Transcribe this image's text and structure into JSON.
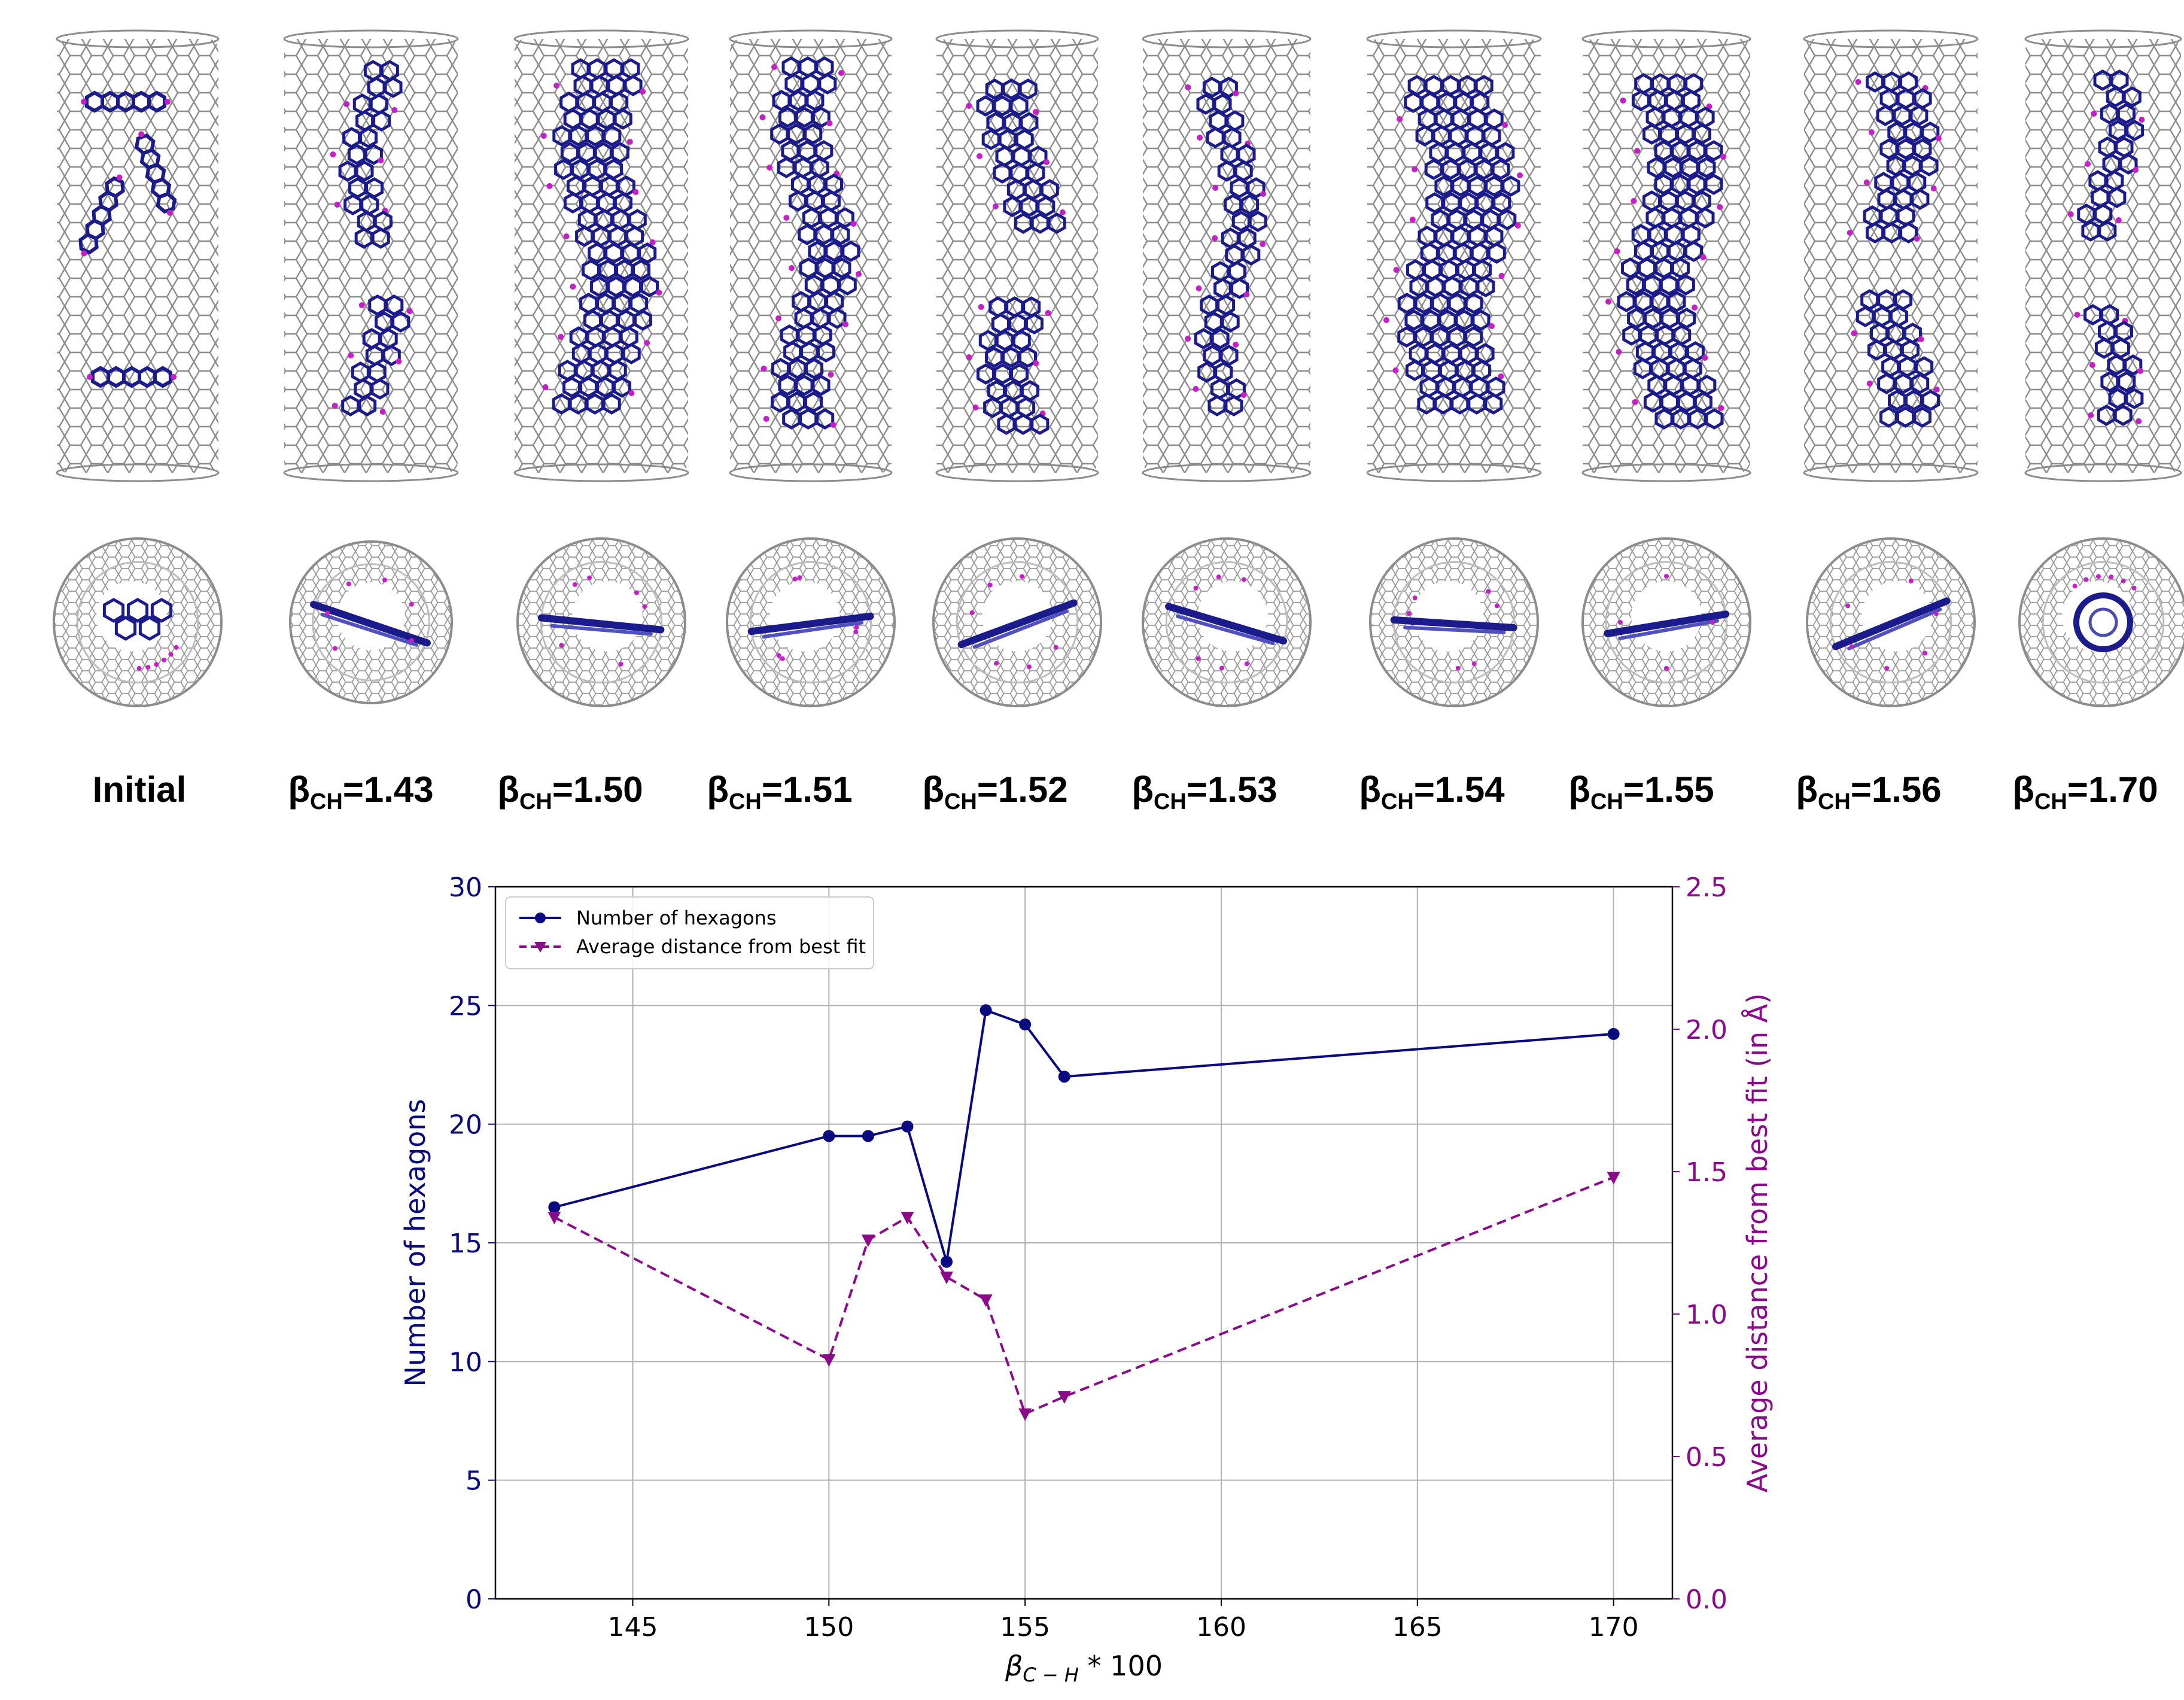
{
  "colors": {
    "series1": "#0a0a80",
    "series2": "#8b0a8b",
    "grid": "#b0b0b0",
    "tube": "#8c8c8c",
    "molecule": "#1b1b8c",
    "hydrogen": "#c71fc7"
  },
  "panels": [
    {
      "label_main": "Initial",
      "label_sub": "",
      "label_value": ""
    },
    {
      "label_main": "β",
      "label_sub": "CH",
      "label_value": "=1.43"
    },
    {
      "label_main": "β",
      "label_sub": "CH",
      "label_value": "=1.50"
    },
    {
      "label_main": "β",
      "label_sub": "CH",
      "label_value": "=1.51"
    },
    {
      "label_main": "β",
      "label_sub": "CH",
      "label_value": "=1.52"
    },
    {
      "label_main": "β",
      "label_sub": "CH",
      "label_value": "=1.53"
    },
    {
      "label_main": "β",
      "label_sub": "CH",
      "label_value": "=1.54"
    },
    {
      "label_main": "β",
      "label_sub": "CH",
      "label_value": "=1.55"
    },
    {
      "label_main": "β",
      "label_sub": "CH",
      "label_value": "=1.56"
    },
    {
      "label_main": "β",
      "label_sub": "CH",
      "label_value": "=1.70"
    }
  ],
  "chart_data": {
    "type": "line",
    "x": [
      143,
      150,
      151,
      152,
      153,
      154,
      155,
      156,
      170
    ],
    "series": [
      {
        "name": "Number of hexagons",
        "axis": "left",
        "marker": "circle",
        "style": "solid",
        "values": [
          16.5,
          19.5,
          19.5,
          19.9,
          14.2,
          24.8,
          24.2,
          22.0,
          23.8
        ]
      },
      {
        "name": "Average distance from best fit",
        "axis": "right",
        "marker": "triangle-down",
        "style": "dashed",
        "values": [
          1.34,
          0.84,
          1.26,
          1.34,
          1.13,
          1.05,
          0.65,
          0.71,
          1.48
        ]
      }
    ],
    "xlabel_main": "β",
    "xlabel_sub": "C − H",
    "xlabel_suffix": " * 100",
    "ylabel_left": "Number of hexagons",
    "ylabel_right": "Average distance from best fit (in Å)",
    "xlim": [
      141.5,
      171.5
    ],
    "ylim_left": [
      0,
      30
    ],
    "ylim_right": [
      0.0,
      2.5
    ],
    "xticks": [
      145,
      150,
      155,
      160,
      165,
      170
    ],
    "yticks_left": [
      0,
      5,
      10,
      15,
      20,
      25,
      30
    ],
    "yticks_right": [
      "0.0",
      "0.5",
      "1.0",
      "1.5",
      "2.0",
      "2.5"
    ],
    "grid": true,
    "legend_position": "top-left"
  }
}
